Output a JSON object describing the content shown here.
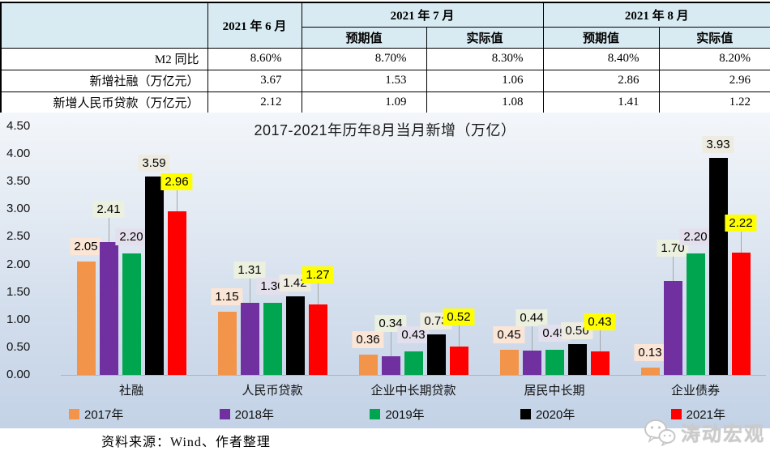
{
  "table": {
    "corner": "",
    "col_headers": {
      "month6": "2021 年 6 月",
      "month7": "2021 年 7 月",
      "month8": "2021 年 8 月",
      "expected": "预期值",
      "actual": "实际值"
    },
    "rows": [
      {
        "label": "M2 同比",
        "values": [
          "8.60%",
          "8.70%",
          "8.30%",
          "8.40%",
          "8.20%"
        ]
      },
      {
        "label": "新增社融（万亿元）",
        "values": [
          "3.67",
          "1.53",
          "1.06",
          "2.86",
          "2.96"
        ]
      },
      {
        "label": "新增人民币贷款（万亿元）",
        "values": [
          "2.12",
          "1.09",
          "1.08",
          "1.41",
          "1.22"
        ]
      }
    ]
  },
  "chart_data": {
    "type": "bar",
    "title": "2017-2021年历年8月当月新增（万亿）",
    "categories": [
      "社融",
      "人民币贷款",
      "企业中长期贷款",
      "居民中长期",
      "企业债券"
    ],
    "series": [
      {
        "name": "2017年",
        "color": "#F2944A",
        "label_bg": "#FBE5D6",
        "values": [
          2.05,
          1.15,
          0.36,
          0.45,
          0.13
        ]
      },
      {
        "name": "2018年",
        "color": "#7030A0",
        "label_bg": "#EBF1DE",
        "values": [
          2.41,
          1.31,
          0.34,
          0.44,
          1.7
        ]
      },
      {
        "name": "2019年",
        "color": "#00A550",
        "label_bg": "#E4DFEC",
        "values": [
          2.2,
          1.3,
          0.43,
          0.45,
          2.2
        ]
      },
      {
        "name": "2020年",
        "color": "#000000",
        "label_bg": "#EEECE1",
        "values": [
          3.59,
          1.42,
          0.73,
          0.56,
          3.93
        ]
      },
      {
        "name": "2021年",
        "color": "#FF0000",
        "label_bg": "#FFFF00",
        "values": [
          2.96,
          1.27,
          0.52,
          0.43,
          2.22
        ]
      }
    ],
    "y_ticks": [
      "4.50",
      "4.00",
      "3.50",
      "3.00",
      "2.50",
      "2.00",
      "1.50",
      "1.00",
      "0.50",
      "0.00"
    ],
    "ylim": [
      0,
      4.5
    ],
    "grid": false,
    "legend_position": "bottom",
    "value_label_decimals": 2
  },
  "footer": {
    "source": "资料来源：Wind、作者整理",
    "watermark": "涛动宏观"
  }
}
